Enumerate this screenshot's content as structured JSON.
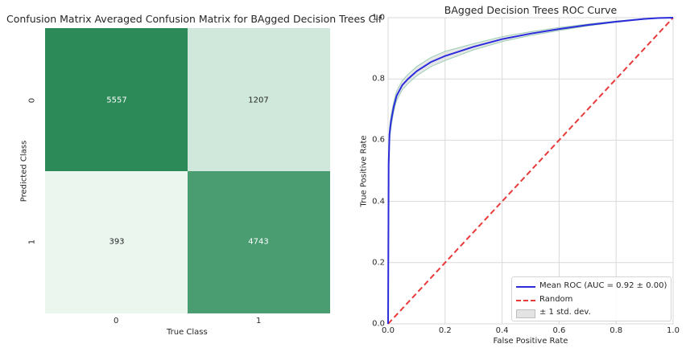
{
  "chart_data": [
    {
      "type": "heatmap",
      "title": "Confusion Matrix Averaged Confusion Matrix for BAgged Decision Trees Clf",
      "xlabel": "True Class",
      "ylabel": "Predicted Class",
      "x_ticks": [
        "0",
        "1"
      ],
      "y_ticks": [
        "0",
        "1"
      ],
      "values": [
        [
          5557,
          1207
        ],
        [
          393,
          4743
        ]
      ],
      "colors": [
        [
          "#2b8a57",
          "#cfe8db"
        ],
        [
          "#eaf6ee",
          "#4a9d70"
        ]
      ],
      "text_colors": [
        [
          "#ffffff",
          "#262626"
        ],
        [
          "#262626",
          "#ffffff"
        ]
      ]
    },
    {
      "type": "line",
      "title": "BAgged Decision Trees ROC Curve",
      "xlabel": "False Positive Rate",
      "ylabel": "True Positive Rate",
      "xlim": [
        0,
        1
      ],
      "ylim": [
        0,
        1
      ],
      "x_ticks": [
        "0.0",
        "0.2",
        "0.4",
        "0.6",
        "0.8",
        "1.0"
      ],
      "y_ticks": [
        "0.0",
        "0.2",
        "0.4",
        "0.6",
        "0.8",
        "1.0"
      ],
      "grid": true,
      "legend_position": "bottom-right",
      "series": [
        {
          "name": "Mean ROC (AUC = 0.92 ± 0.00)",
          "color": "#2b2bdc",
          "style": "solid",
          "x": [
            0,
            0.002,
            0.005,
            0.01,
            0.02,
            0.03,
            0.05,
            0.07,
            0.1,
            0.15,
            0.2,
            0.3,
            0.4,
            0.5,
            0.6,
            0.7,
            0.8,
            0.9,
            0.95,
            1.0
          ],
          "y": [
            0,
            0.52,
            0.62,
            0.66,
            0.71,
            0.745,
            0.78,
            0.8,
            0.825,
            0.855,
            0.875,
            0.905,
            0.93,
            0.948,
            0.963,
            0.976,
            0.987,
            0.996,
            0.999,
            1.0
          ]
        },
        {
          "name": "Random",
          "color": "#e83a3a",
          "style": "dashed",
          "x": [
            0,
            1
          ],
          "y": [
            0,
            1
          ]
        },
        {
          "name": "± 1 std. dev.",
          "color": "#b8b8b8",
          "style": "band",
          "x": [
            0,
            0.002,
            0.005,
            0.01,
            0.02,
            0.03,
            0.05,
            0.07,
            0.1,
            0.15,
            0.2,
            0.3,
            0.4,
            0.5,
            0.6,
            0.7,
            0.8,
            0.9,
            0.95,
            1.0
          ],
          "y_upper": [
            0,
            0.54,
            0.64,
            0.68,
            0.725,
            0.76,
            0.795,
            0.815,
            0.84,
            0.87,
            0.89,
            0.915,
            0.938,
            0.954,
            0.968,
            0.979,
            0.989,
            0.997,
            1.0,
            1.0
          ],
          "y_lower": [
            0,
            0.5,
            0.6,
            0.64,
            0.695,
            0.73,
            0.765,
            0.785,
            0.81,
            0.84,
            0.86,
            0.895,
            0.922,
            0.942,
            0.958,
            0.973,
            0.985,
            0.995,
            0.998,
            1.0
          ]
        }
      ]
    }
  ]
}
